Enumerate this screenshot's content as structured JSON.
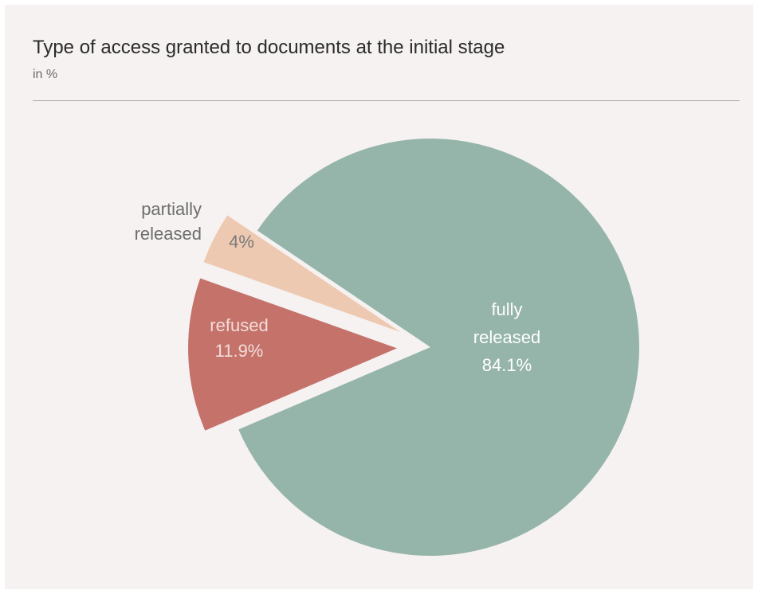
{
  "chart_data": {
    "type": "pie",
    "title": "Type of access granted to documents at the initial stage",
    "subtitle": "in %",
    "slices": [
      {
        "label": "fully released",
        "label_lines": [
          "fully",
          "released",
          "84.1%"
        ],
        "value": 84.1,
        "value_label": "84.1%",
        "color": "#95b4aa",
        "text_color": "#ffffff",
        "exploded": false
      },
      {
        "label": "refused",
        "label_lines": [
          "refused",
          "11.9%"
        ],
        "value": 11.9,
        "value_label": "11.9%",
        "color": "#c5726b",
        "text_color": "#f3ddd9",
        "exploded": true
      },
      {
        "label": "partially released",
        "label_lines": [
          "partially",
          "released"
        ],
        "value": 4,
        "value_label": "4%",
        "color": "#eec9b1",
        "text_color": "#7a7a7a",
        "exploded": true
      }
    ]
  }
}
